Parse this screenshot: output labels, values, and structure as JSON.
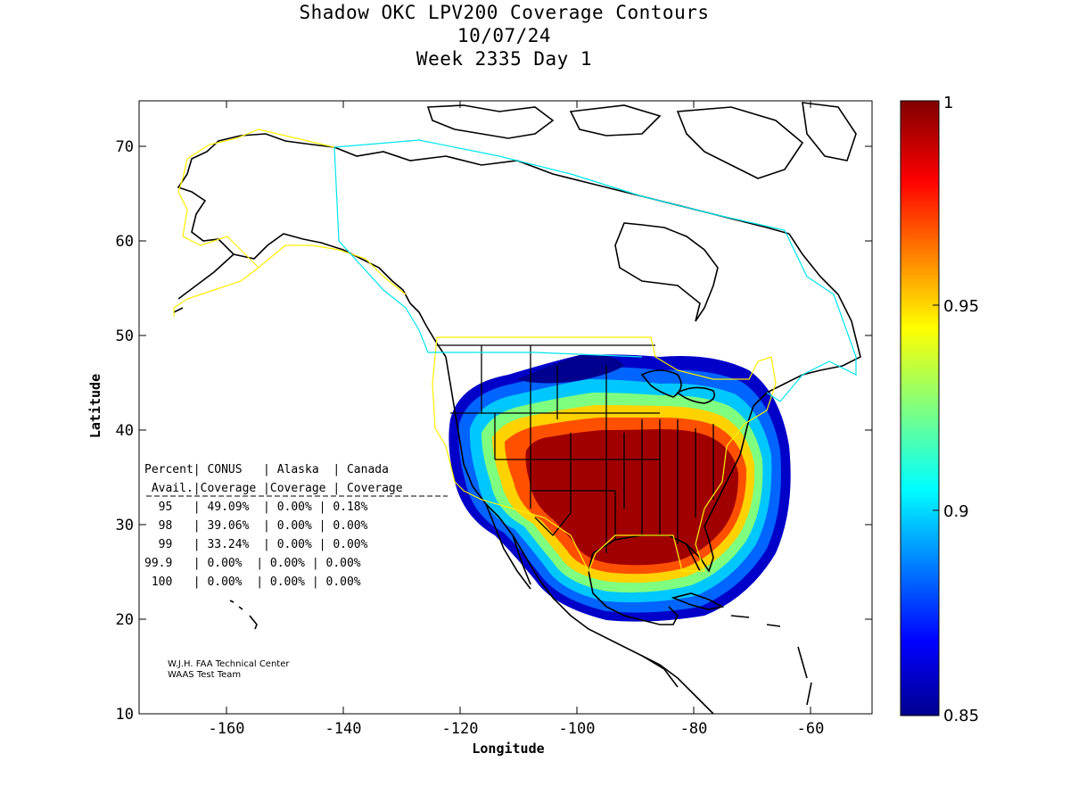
{
  "header": {
    "title": "Shadow OKC LPV200 Coverage Contours",
    "date": "10/07/24",
    "week_day": "Week 2335 Day 1"
  },
  "axes": {
    "xlabel": "Longitude",
    "ylabel": "Latitude",
    "x_ticks": [
      "-160",
      "-140",
      "-120",
      "-100",
      "-80",
      "-60"
    ],
    "y_ticks": [
      "10",
      "20",
      "30",
      "40",
      "50",
      "60",
      "70"
    ],
    "xlim": [
      -175,
      -49
    ],
    "ylim": [
      10,
      75
    ]
  },
  "colorbar": {
    "ticks": [
      "1",
      "0.95",
      "0.9",
      "0.85"
    ],
    "range": [
      0.85,
      1.0
    ],
    "colormap": "jet"
  },
  "coverage_table": {
    "header_row1": "Percent| CONUS   | Alaska  | Canada",
    "header_row2": " Avail.|Coverage |Coverage | Coverage",
    "rows": [
      "  95   | 49.09%  | 0.00% | 0.18%",
      "  98   | 39.06%  | 0.00% | 0.00%",
      "  99   | 33.24%  | 0.00% | 0.00%",
      "99.9   | 0.00%  | 0.00% | 0.00%",
      " 100   | 0.00%  | 0.00% | 0.00%"
    ]
  },
  "credits": {
    "line1": "W.J.H. FAA Technical Center",
    "line2": "WAAS Test Team"
  },
  "colors": {
    "coastline": "#000000",
    "alaska_boundary": "#ffee00",
    "canada_boundary": "#00e5ee",
    "max_coverage": "#a00000",
    "min_coverage": "#00008f"
  }
}
